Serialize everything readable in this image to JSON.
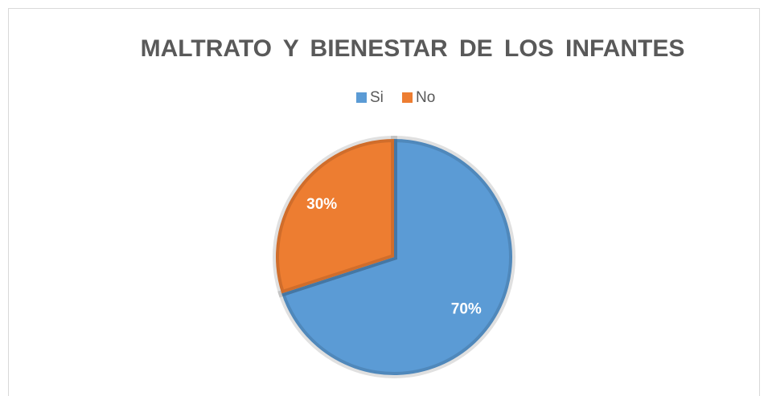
{
  "chart_data": {
    "type": "pie",
    "title": "MALTRATO Y BIENESTAR DE LOS INFANTES",
    "categories": [
      "Si",
      "No"
    ],
    "values": [
      70,
      30
    ],
    "value_labels": [
      "70%",
      "30%"
    ],
    "colors": [
      "#5b9bd5",
      "#ed7d31"
    ],
    "legend": "top"
  }
}
